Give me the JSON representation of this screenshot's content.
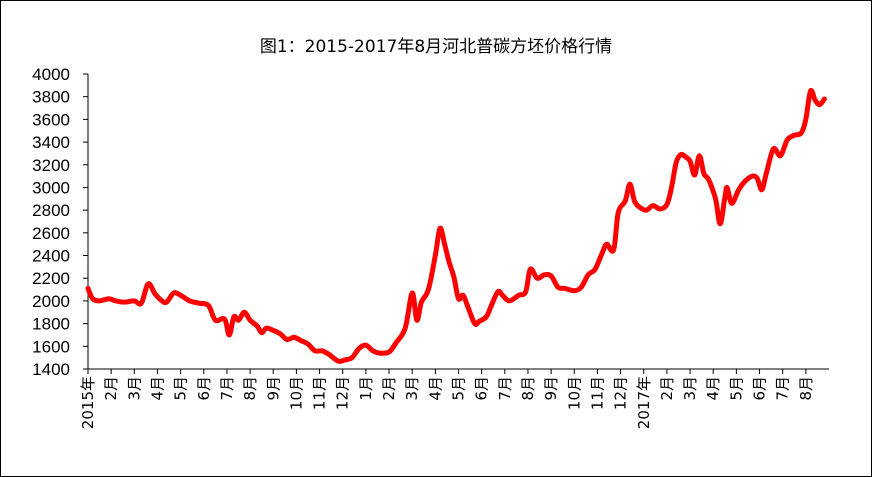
{
  "chart_data": {
    "type": "line",
    "title": "图1：2015-2017年8月河北普碳方坯价格行情",
    "xlabel": "",
    "ylabel": "",
    "ylim": [
      1400,
      4000
    ],
    "yticks": [
      1400,
      1600,
      1800,
      2000,
      2200,
      2400,
      2600,
      2800,
      3000,
      3200,
      3400,
      3600,
      3800,
      4000
    ],
    "xlim": [
      0,
      32
    ],
    "xtick_labels": [
      {
        "label": "2015年",
        "x": 0
      },
      {
        "label": "2月",
        "x": 1
      },
      {
        "label": "3月",
        "x": 2
      },
      {
        "label": "4月",
        "x": 3
      },
      {
        "label": "5月",
        "x": 4
      },
      {
        "label": "6月",
        "x": 5
      },
      {
        "label": "7月",
        "x": 6
      },
      {
        "label": "8月",
        "x": 7
      },
      {
        "label": "9月",
        "x": 8
      },
      {
        "label": "10月",
        "x": 9
      },
      {
        "label": "11月",
        "x": 10
      },
      {
        "label": "12月",
        "x": 11
      },
      {
        "label": "1月",
        "x": 12
      },
      {
        "label": "2月",
        "x": 13
      },
      {
        "label": "3月",
        "x": 14
      },
      {
        "label": "4月",
        "x": 15
      },
      {
        "label": "5月",
        "x": 16
      },
      {
        "label": "6月",
        "x": 17
      },
      {
        "label": "7月",
        "x": 18
      },
      {
        "label": "8月",
        "x": 19
      },
      {
        "label": "9月",
        "x": 20
      },
      {
        "label": "10月",
        "x": 21
      },
      {
        "label": "11月",
        "x": 22
      },
      {
        "label": "12月",
        "x": 23
      },
      {
        "label": "2017年",
        "x": 24
      },
      {
        "label": "2月",
        "x": 25
      },
      {
        "label": "3月",
        "x": 26
      },
      {
        "label": "4月",
        "x": 27
      },
      {
        "label": "5月",
        "x": 28
      },
      {
        "label": "6月",
        "x": 29
      },
      {
        "label": "7月",
        "x": 30
      },
      {
        "label": "8月",
        "x": 31
      }
    ],
    "series": [
      {
        "color": "#ff0000",
        "points": [
          [
            0.0,
            2110
          ],
          [
            0.2,
            2020
          ],
          [
            0.5,
            2000
          ],
          [
            0.9,
            2020
          ],
          [
            1.2,
            2000
          ],
          [
            1.6,
            1990
          ],
          [
            2.0,
            2000
          ],
          [
            2.3,
            1980
          ],
          [
            2.6,
            2150
          ],
          [
            2.9,
            2060
          ],
          [
            3.2,
            2000
          ],
          [
            3.4,
            1990
          ],
          [
            3.7,
            2070
          ],
          [
            4.0,
            2050
          ],
          [
            4.4,
            2000
          ],
          [
            4.8,
            1980
          ],
          [
            5.2,
            1960
          ],
          [
            5.5,
            1830
          ],
          [
            5.9,
            1840
          ],
          [
            6.1,
            1700
          ],
          [
            6.3,
            1860
          ],
          [
            6.5,
            1830
          ],
          [
            6.75,
            1900
          ],
          [
            7.0,
            1830
          ],
          [
            7.3,
            1780
          ],
          [
            7.5,
            1720
          ],
          [
            7.7,
            1760
          ],
          [
            8.0,
            1740
          ],
          [
            8.3,
            1710
          ],
          [
            8.6,
            1660
          ],
          [
            8.9,
            1680
          ],
          [
            9.2,
            1650
          ],
          [
            9.5,
            1620
          ],
          [
            9.8,
            1560
          ],
          [
            10.1,
            1560
          ],
          [
            10.4,
            1530
          ],
          [
            10.8,
            1470
          ],
          [
            11.1,
            1480
          ],
          [
            11.4,
            1500
          ],
          [
            11.7,
            1580
          ],
          [
            12.0,
            1610
          ],
          [
            12.3,
            1560
          ],
          [
            12.6,
            1540
          ],
          [
            13.0,
            1550
          ],
          [
            13.3,
            1630
          ],
          [
            13.7,
            1760
          ],
          [
            14.0,
            2070
          ],
          [
            14.2,
            1830
          ],
          [
            14.4,
            1990
          ],
          [
            14.7,
            2100
          ],
          [
            15.0,
            2400
          ],
          [
            15.2,
            2640
          ],
          [
            15.4,
            2500
          ],
          [
            15.6,
            2340
          ],
          [
            15.8,
            2210
          ],
          [
            16.0,
            2020
          ],
          [
            16.2,
            2050
          ],
          [
            16.4,
            1950
          ],
          [
            16.7,
            1800
          ],
          [
            16.9,
            1820
          ],
          [
            17.2,
            1860
          ],
          [
            17.4,
            1950
          ],
          [
            17.7,
            2080
          ],
          [
            17.9,
            2050
          ],
          [
            18.2,
            2000
          ],
          [
            18.6,
            2050
          ],
          [
            18.9,
            2080
          ],
          [
            19.1,
            2280
          ],
          [
            19.4,
            2200
          ],
          [
            19.7,
            2230
          ],
          [
            20.0,
            2220
          ],
          [
            20.3,
            2120
          ],
          [
            20.6,
            2110
          ],
          [
            21.0,
            2090
          ],
          [
            21.3,
            2120
          ],
          [
            21.6,
            2230
          ],
          [
            21.9,
            2280
          ],
          [
            22.2,
            2420
          ],
          [
            22.4,
            2500
          ],
          [
            22.7,
            2450
          ],
          [
            22.9,
            2780
          ],
          [
            23.2,
            2880
          ],
          [
            23.4,
            3030
          ],
          [
            23.6,
            2880
          ],
          [
            23.8,
            2830
          ],
          [
            24.1,
            2800
          ],
          [
            24.4,
            2840
          ],
          [
            24.7,
            2810
          ],
          [
            25.0,
            2850
          ],
          [
            25.2,
            3000
          ],
          [
            25.4,
            3220
          ],
          [
            25.6,
            3290
          ],
          [
            25.8,
            3270
          ],
          [
            26.0,
            3230
          ],
          [
            26.2,
            3110
          ],
          [
            26.4,
            3280
          ],
          [
            26.6,
            3120
          ],
          [
            26.8,
            3070
          ],
          [
            27.1,
            2900
          ],
          [
            27.3,
            2680
          ],
          [
            27.5,
            2910
          ],
          [
            27.6,
            3000
          ],
          [
            27.8,
            2860
          ],
          [
            28.1,
            2980
          ],
          [
            28.4,
            3060
          ],
          [
            28.7,
            3100
          ],
          [
            28.9,
            3080
          ],
          [
            29.1,
            2980
          ],
          [
            29.3,
            3130
          ],
          [
            29.6,
            3340
          ],
          [
            29.9,
            3280
          ],
          [
            30.2,
            3420
          ],
          [
            30.5,
            3460
          ],
          [
            30.8,
            3480
          ],
          [
            31.0,
            3600
          ],
          [
            31.2,
            3850
          ],
          [
            31.4,
            3770
          ],
          [
            31.6,
            3730
          ],
          [
            31.8,
            3780
          ]
        ]
      }
    ]
  }
}
